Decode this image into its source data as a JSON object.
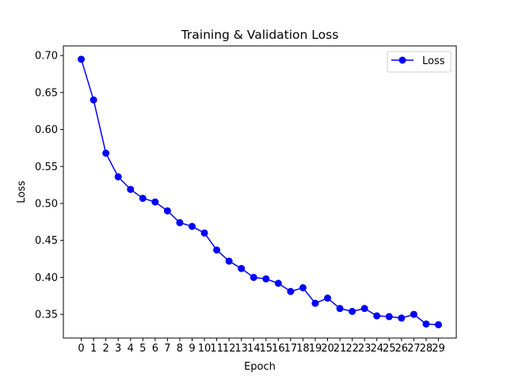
{
  "chart_data": {
    "type": "line",
    "title": "Training & Validation Loss",
    "xlabel": "Epoch",
    "ylabel": "Loss",
    "x": [
      0,
      1,
      2,
      3,
      4,
      5,
      6,
      7,
      8,
      9,
      10,
      11,
      12,
      13,
      14,
      15,
      16,
      17,
      18,
      19,
      20,
      21,
      22,
      23,
      24,
      25,
      26,
      27,
      28,
      29
    ],
    "series": [
      {
        "name": "Loss",
        "color": "#0000ff",
        "marker": "circle",
        "values": [
          0.695,
          0.64,
          0.568,
          0.536,
          0.519,
          0.507,
          0.502,
          0.49,
          0.474,
          0.469,
          0.46,
          0.437,
          0.422,
          0.412,
          0.4,
          0.398,
          0.392,
          0.381,
          0.386,
          0.365,
          0.372,
          0.358,
          0.354,
          0.358,
          0.348,
          0.347,
          0.345,
          0.35,
          0.337,
          0.336
        ]
      }
    ],
    "xlim": [
      -1.45,
      30.45
    ],
    "ylim": [
      0.318,
      0.713
    ],
    "yticks": [
      "0.35",
      "0.40",
      "0.45",
      "0.50",
      "0.55",
      "0.60",
      "0.65",
      "0.70"
    ],
    "xticks": [
      "0",
      "1",
      "2",
      "3",
      "4",
      "5",
      "6",
      "7",
      "8",
      "9",
      "10",
      "11",
      "12",
      "13",
      "14",
      "15",
      "16",
      "17",
      "18",
      "19",
      "20",
      "21",
      "22",
      "23",
      "24",
      "25",
      "26",
      "27",
      "28",
      "29"
    ],
    "grid": false,
    "legend": "top-right"
  }
}
